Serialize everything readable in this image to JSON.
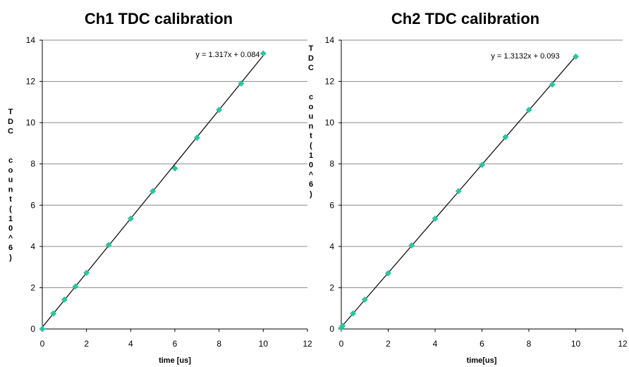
{
  "chart_data": [
    {
      "type": "scatter",
      "title": "Ch1 TDC calibration",
      "xlabel": "time [us]",
      "ylabel": "TDC count(10^6)",
      "xlim": [
        0,
        12
      ],
      "ylim": [
        0,
        14
      ],
      "xticks": [
        0,
        2,
        4,
        6,
        8,
        10,
        12
      ],
      "yticks": [
        0,
        2,
        4,
        6,
        8,
        10,
        12,
        14
      ],
      "grid": "horizontal",
      "marker_color": "#2ec4a0",
      "line_color": "#000000",
      "trendline": {
        "slope": 1.317,
        "intercept": 0.084,
        "label": "y = 1.317x + 0.084"
      },
      "series": [
        {
          "x": [
            0,
            0.5,
            1,
            1.5,
            2,
            3,
            4,
            5,
            6,
            7,
            8,
            9,
            10
          ],
          "y": [
            0.0,
            0.75,
            1.42,
            2.06,
            2.72,
            4.07,
            5.35,
            6.68,
            7.78,
            9.27,
            10.62,
            11.9,
            13.35
          ]
        }
      ]
    },
    {
      "type": "scatter",
      "title": "Ch2 TDC calibration",
      "xlabel": "time[us]",
      "ylabel": "TDC count(10^6)",
      "xlim": [
        0,
        12
      ],
      "ylim": [
        0,
        14
      ],
      "xticks": [
        0,
        2,
        4,
        6,
        8,
        10,
        12
      ],
      "yticks": [
        0,
        2,
        4,
        6,
        8,
        10,
        12,
        14
      ],
      "grid": "horizontal",
      "marker_color": "#2ec4a0",
      "line_color": "#000000",
      "trendline": {
        "slope": 1.3132,
        "intercept": 0.093,
        "label": "y = 1.3132x + 0.093"
      },
      "series": [
        {
          "x": [
            0,
            0.05,
            0.5,
            1,
            2,
            3,
            4,
            5,
            6,
            7,
            8,
            9,
            10
          ],
          "y": [
            0.05,
            0.15,
            0.75,
            1.42,
            2.7,
            4.05,
            5.35,
            6.68,
            7.95,
            9.3,
            10.62,
            11.85,
            13.2
          ]
        }
      ]
    }
  ]
}
